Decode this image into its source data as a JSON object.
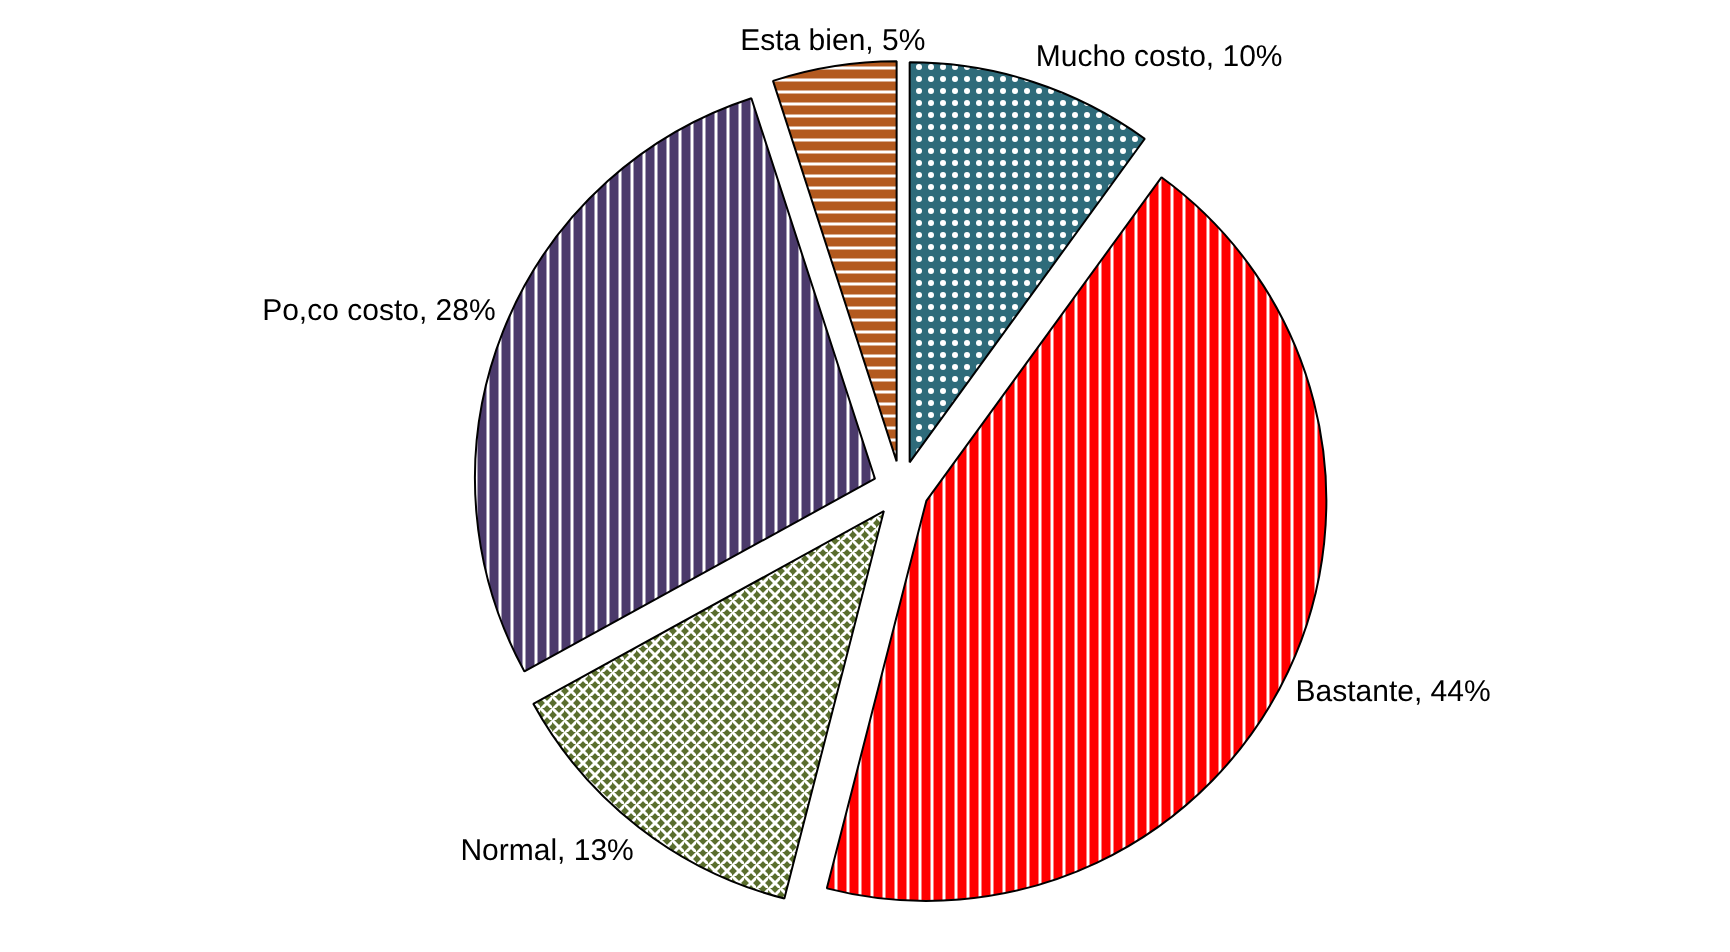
{
  "chart_data": {
    "type": "pie",
    "categories": [
      "Mucho costo",
      "Bastante",
      "Normal",
      "Po,co costo",
      "Esta bien"
    ],
    "values": [
      10,
      44,
      13,
      28,
      5
    ],
    "colors": [
      "#2e6b7a",
      "#ff0000",
      "#5a6e2e",
      "#4b3a6b",
      "#b35a1f"
    ],
    "value_labels": [
      "10%",
      "44%",
      "13%",
      "28%",
      "5%"
    ]
  }
}
